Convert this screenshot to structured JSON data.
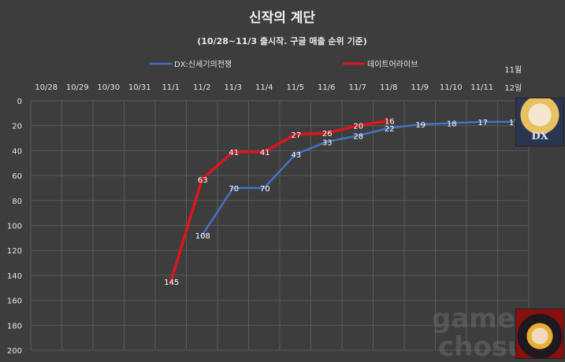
{
  "chart_data": {
    "type": "line",
    "title": "신작의 계단",
    "subtitle": "(10/28~11/3 출시작. 구글 매출 순위 기준)",
    "categories": [
      "10/28",
      "10/29",
      "10/30",
      "10/31",
      "11/1",
      "11/2",
      "11/3",
      "11/4",
      "11/5",
      "11/6",
      "11/7",
      "11/8",
      "11/9",
      "11/10",
      "11/11",
      "11월 12일"
    ],
    "ylim": [
      200,
      0
    ],
    "y_ticks": [
      0,
      20,
      40,
      60,
      80,
      100,
      120,
      140,
      160,
      180,
      200
    ],
    "y_reversed": true,
    "grid": true,
    "legend_position": "top",
    "series": [
      {
        "name": "DX:신세기의전쟁",
        "color": "#4472c4",
        "values": [
          null,
          null,
          null,
          null,
          null,
          108,
          70,
          70,
          43,
          33,
          28,
          22,
          19,
          18,
          17,
          17
        ]
      },
      {
        "name": "데이트어라이브",
        "color": "#e0141e",
        "values": [
          null,
          null,
          null,
          null,
          145,
          63,
          41,
          41,
          27,
          26,
          20,
          16,
          null,
          null,
          null,
          null
        ]
      }
    ]
  },
  "watermark": {
    "line1": "game",
    "line2": "chosun"
  },
  "thumbnails": {
    "top_text": "DX",
    "top_colors": [
      "#2a3550",
      "#e8c060",
      "#f5e6d0"
    ],
    "bottom_colors": [
      "#8a1010",
      "#e8b030",
      "#201820"
    ]
  }
}
